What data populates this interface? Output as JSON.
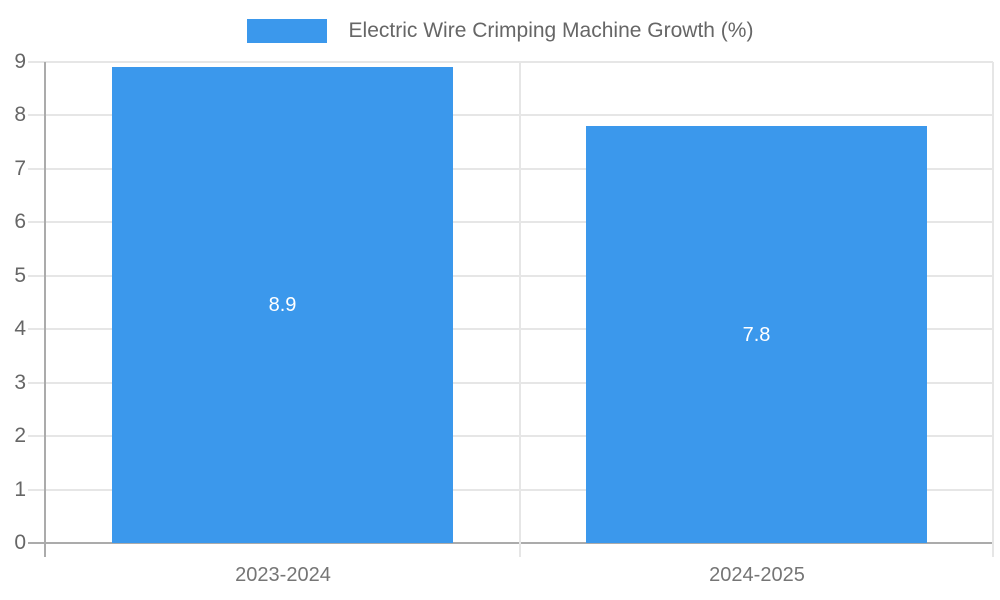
{
  "chart_data": {
    "type": "bar",
    "title": "Electric Wire Crimping Machine Growth (%)",
    "legend_label": "Electric Wire Crimping Machine Growth (%)",
    "legend_position": "top",
    "categories": [
      "2023-2024",
      "2024-2025"
    ],
    "values": [
      8.9,
      7.8
    ],
    "data_labels": [
      "8.9",
      "7.8"
    ],
    "xlabel": "",
    "ylabel": "",
    "ylim": [
      0,
      9
    ],
    "yticks": [
      "0",
      "1",
      "2",
      "3",
      "4",
      "5",
      "6",
      "7",
      "8",
      "9"
    ],
    "grid": true
  },
  "colors": {
    "bar": "#3b98ec",
    "gridline": "#e6e6e6",
    "axis": "#ababab",
    "tick_text": "#666666",
    "category_text": "#757575",
    "data_label_text": "#ffffff",
    "background": "#ffffff"
  }
}
